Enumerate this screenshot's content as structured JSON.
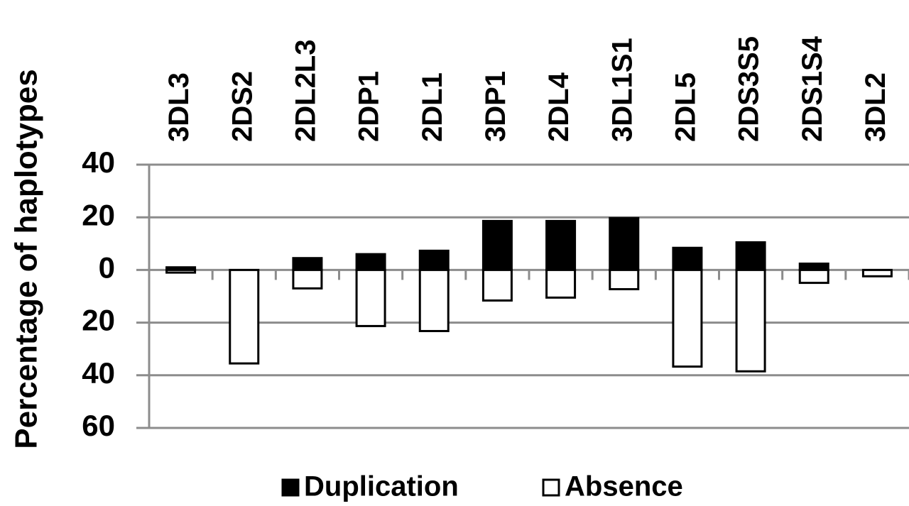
{
  "chart_data": {
    "type": "bar",
    "y_label": "Percentage of haplotypes",
    "categories": [
      "3DL3",
      "2DS2",
      "2DL2L3",
      "2DP1",
      "2DL1",
      "3DP1",
      "2DL4",
      "3DL1S1",
      "2DL5",
      "2DS3S5",
      "2DS1S4",
      "3DL2"
    ],
    "series": [
      {
        "name": "Duplication",
        "color": "#000000",
        "values": [
          1,
          0,
          4.5,
          6,
          7.3,
          18.6,
          18.6,
          19.7,
          8.4,
          10.5,
          2.4,
          0
        ]
      },
      {
        "name": "Absence",
        "color": "#ffffff",
        "values": [
          -1,
          -35.5,
          -7,
          -21.3,
          -23.2,
          -11.6,
          -10.5,
          -7.3,
          -36.7,
          -38.5,
          -4.9,
          -2.4
        ]
      }
    ],
    "ylim": [
      -60,
      40
    ],
    "yticks": [
      40,
      20,
      0,
      {
        "value": -20,
        "label": "20"
      },
      {
        "value": -40,
        "label": "40"
      },
      {
        "value": -60,
        "label": "60"
      }
    ],
    "grid": true,
    "legend": "bottom"
  }
}
